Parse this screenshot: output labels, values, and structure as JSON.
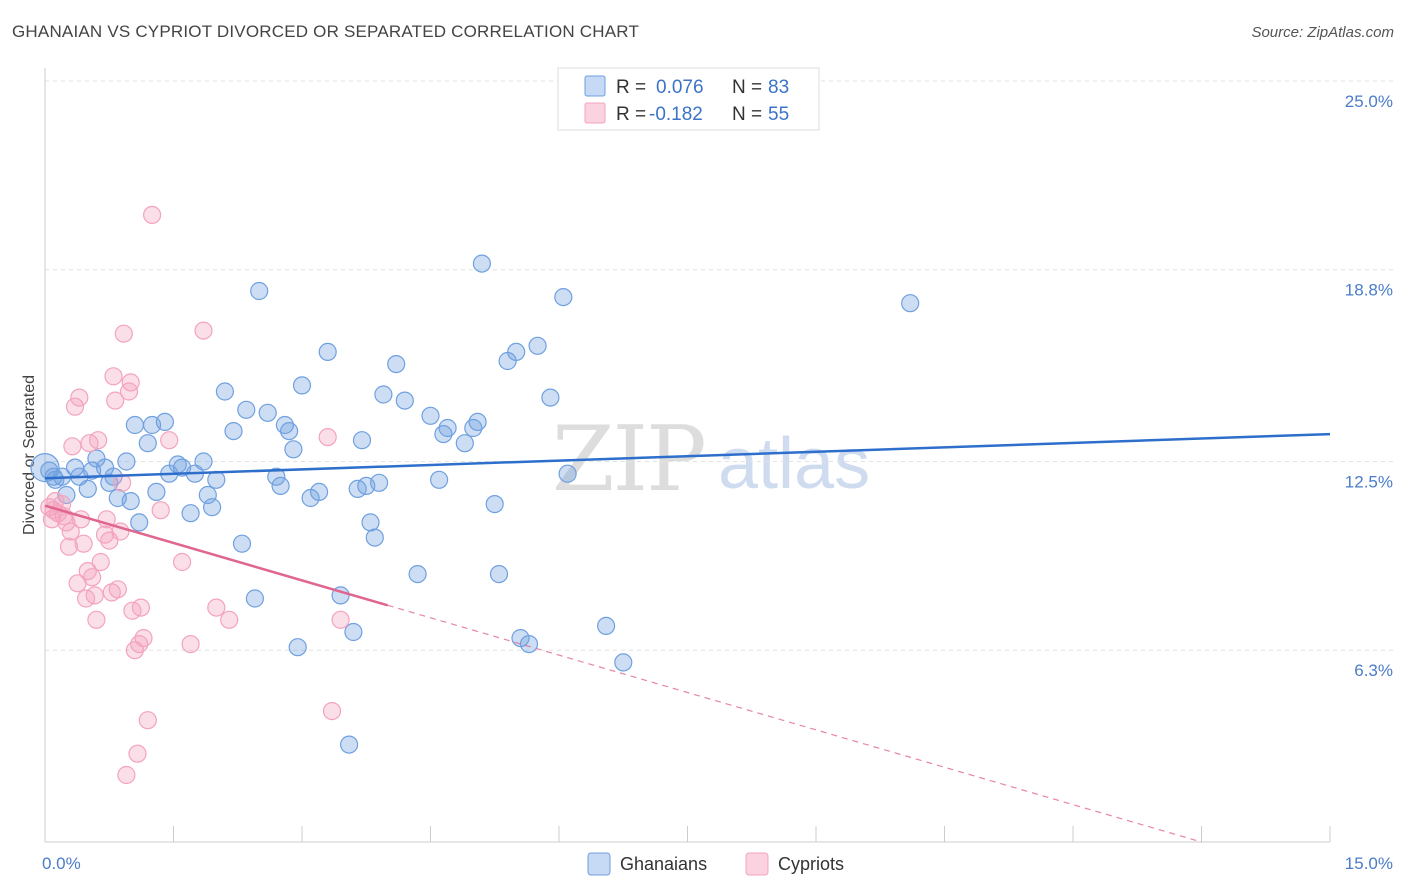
{
  "title": "GHANAIAN VS CYPRIOT DIVORCED OR SEPARATED CORRELATION CHART",
  "source": "Source: ZipAtlas.com",
  "watermark": {
    "zip": "ZIP",
    "atlas": "atlas"
  },
  "chart_data": {
    "type": "scatter",
    "xlabel": "",
    "ylabel": "Divorced or Separated",
    "xlim": [
      0,
      15
    ],
    "ylim": [
      0,
      25.8
    ],
    "x_tick_labels": [
      "0.0%",
      "15.0%"
    ],
    "y_ticks": [
      {
        "value": 6.3,
        "label": "6.3%"
      },
      {
        "value": 12.5,
        "label": "12.5%"
      },
      {
        "value": 18.8,
        "label": "18.8%"
      },
      {
        "value": 25.0,
        "label": "25.0%"
      }
    ],
    "grid": "horizontal-dashed",
    "legend": {
      "placement": "top-center",
      "rows": [
        {
          "r_label": "R =",
          "r_value": "0.076",
          "n_label": "N =",
          "n_value": "83"
        },
        {
          "r_label": "R =",
          "r_value": "-0.182",
          "n_label": "N =",
          "n_value": "55"
        }
      ]
    },
    "series": [
      {
        "name": "Ghanaians",
        "color": "#6fa0e0",
        "line_color": "#2e6fcc",
        "trend": {
          "x": [
            0.0,
            15.0
          ],
          "y": [
            11.95,
            13.4
          ],
          "dashed_from": null
        },
        "points": [
          [
            0.05,
            12.2
          ],
          [
            0.1,
            12.0
          ],
          [
            0.12,
            11.9
          ],
          [
            0.2,
            12.0
          ],
          [
            0.25,
            11.4
          ],
          [
            0.35,
            12.3
          ],
          [
            0.4,
            12.0
          ],
          [
            0.5,
            11.6
          ],
          [
            0.55,
            12.2
          ],
          [
            0.6,
            12.6
          ],
          [
            0.7,
            12.3
          ],
          [
            0.75,
            11.8
          ],
          [
            0.8,
            12.0
          ],
          [
            0.85,
            11.3
          ],
          [
            0.95,
            12.5
          ],
          [
            1.0,
            11.2
          ],
          [
            1.05,
            13.7
          ],
          [
            1.1,
            10.5
          ],
          [
            1.2,
            13.1
          ],
          [
            1.25,
            13.7
          ],
          [
            1.3,
            11.5
          ],
          [
            1.4,
            13.8
          ],
          [
            1.45,
            12.1
          ],
          [
            1.55,
            12.4
          ],
          [
            1.6,
            12.3
          ],
          [
            1.7,
            10.8
          ],
          [
            1.75,
            12.1
          ],
          [
            1.85,
            12.5
          ],
          [
            1.9,
            11.4
          ],
          [
            1.95,
            11.0
          ],
          [
            2.0,
            11.9
          ],
          [
            2.1,
            14.8
          ],
          [
            2.2,
            13.5
          ],
          [
            2.3,
            9.8
          ],
          [
            2.35,
            14.2
          ],
          [
            2.45,
            8.0
          ],
          [
            2.5,
            18.1
          ],
          [
            2.6,
            14.1
          ],
          [
            2.7,
            12.0
          ],
          [
            2.75,
            11.7
          ],
          [
            2.8,
            13.7
          ],
          [
            2.85,
            13.5
          ],
          [
            2.9,
            12.9
          ],
          [
            2.95,
            6.4
          ],
          [
            3.0,
            15.0
          ],
          [
            3.1,
            11.3
          ],
          [
            3.2,
            11.5
          ],
          [
            3.3,
            16.1
          ],
          [
            3.45,
            8.1
          ],
          [
            3.55,
            3.2
          ],
          [
            3.6,
            6.9
          ],
          [
            3.65,
            11.6
          ],
          [
            3.7,
            13.2
          ],
          [
            3.75,
            11.7
          ],
          [
            3.8,
            10.5
          ],
          [
            3.85,
            10.0
          ],
          [
            3.9,
            11.8
          ],
          [
            3.95,
            14.7
          ],
          [
            4.1,
            15.7
          ],
          [
            4.2,
            14.5
          ],
          [
            4.35,
            8.8
          ],
          [
            4.5,
            14.0
          ],
          [
            4.6,
            11.9
          ],
          [
            4.65,
            13.4
          ],
          [
            4.7,
            13.6
          ],
          [
            4.9,
            13.1
          ],
          [
            5.0,
            13.6
          ],
          [
            5.05,
            13.8
          ],
          [
            5.1,
            19.0
          ],
          [
            5.25,
            11.1
          ],
          [
            5.3,
            8.8
          ],
          [
            5.4,
            15.8
          ],
          [
            5.5,
            16.1
          ],
          [
            5.55,
            6.7
          ],
          [
            5.65,
            6.5
          ],
          [
            5.75,
            16.3
          ],
          [
            5.9,
            14.6
          ],
          [
            6.05,
            17.9
          ],
          [
            6.1,
            12.1
          ],
          [
            6.55,
            7.1
          ],
          [
            6.75,
            5.9
          ],
          [
            10.1,
            17.7
          ],
          [
            0.0,
            12.3
          ]
        ]
      },
      {
        "name": "Cypriots",
        "color": "#f4a3bd",
        "line_color": "#e0668f",
        "trend": {
          "x": [
            0.0,
            13.5
          ],
          "y": [
            11.05,
            0.0
          ],
          "dashed_from": 4.0
        },
        "points": [
          [
            0.05,
            11.0
          ],
          [
            0.08,
            10.6
          ],
          [
            0.1,
            10.9
          ],
          [
            0.12,
            11.2
          ],
          [
            0.15,
            10.8
          ],
          [
            0.2,
            11.1
          ],
          [
            0.22,
            10.7
          ],
          [
            0.25,
            10.5
          ],
          [
            0.28,
            9.7
          ],
          [
            0.3,
            10.2
          ],
          [
            0.32,
            13.0
          ],
          [
            0.35,
            14.3
          ],
          [
            0.38,
            8.5
          ],
          [
            0.4,
            14.6
          ],
          [
            0.42,
            10.6
          ],
          [
            0.45,
            9.8
          ],
          [
            0.48,
            8.0
          ],
          [
            0.5,
            8.9
          ],
          [
            0.52,
            13.1
          ],
          [
            0.55,
            8.7
          ],
          [
            0.58,
            8.1
          ],
          [
            0.6,
            7.3
          ],
          [
            0.62,
            13.2
          ],
          [
            0.65,
            9.2
          ],
          [
            0.7,
            10.1
          ],
          [
            0.72,
            10.6
          ],
          [
            0.75,
            9.9
          ],
          [
            0.78,
            8.2
          ],
          [
            0.8,
            15.3
          ],
          [
            0.82,
            14.5
          ],
          [
            0.85,
            8.3
          ],
          [
            0.88,
            10.2
          ],
          [
            0.9,
            11.8
          ],
          [
            0.92,
            16.7
          ],
          [
            0.95,
            2.2
          ],
          [
            0.98,
            14.8
          ],
          [
            1.0,
            15.1
          ],
          [
            1.02,
            7.6
          ],
          [
            1.05,
            6.3
          ],
          [
            1.08,
            2.9
          ],
          [
            1.1,
            6.5
          ],
          [
            1.12,
            7.7
          ],
          [
            1.15,
            6.7
          ],
          [
            1.2,
            4.0
          ],
          [
            1.25,
            20.6
          ],
          [
            1.35,
            10.9
          ],
          [
            1.45,
            13.2
          ],
          [
            1.6,
            9.2
          ],
          [
            1.7,
            6.5
          ],
          [
            1.85,
            16.8
          ],
          [
            2.0,
            7.7
          ],
          [
            2.15,
            7.3
          ],
          [
            3.35,
            4.3
          ],
          [
            3.45,
            7.3
          ],
          [
            3.3,
            13.3
          ]
        ]
      }
    ]
  }
}
